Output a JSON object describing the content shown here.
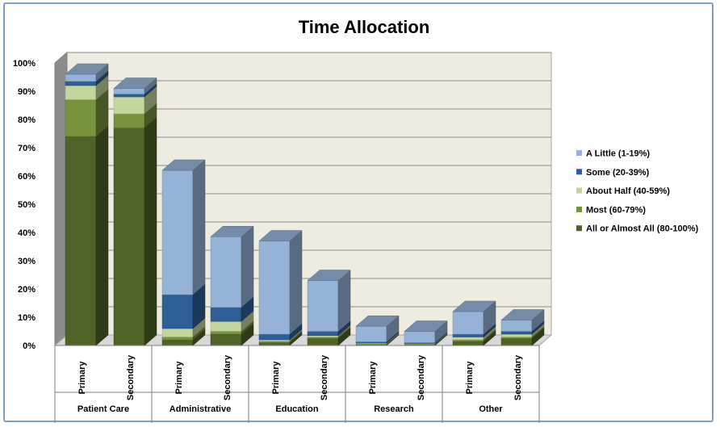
{
  "chart_data": {
    "type": "bar",
    "stacked": true,
    "three_d": true,
    "title": "Time Allocation",
    "xlabel": "",
    "ylabel": "",
    "ylim": [
      0,
      100
    ],
    "y_ticks": [
      "0%",
      "10%",
      "20%",
      "30%",
      "40%",
      "50%",
      "60%",
      "70%",
      "80%",
      "90%",
      "100%"
    ],
    "grid": true,
    "legend_position": "right",
    "groups": [
      {
        "name": "Patient Care",
        "categories": [
          "Primary",
          "Secondary"
        ]
      },
      {
        "name": "Administrative",
        "categories": [
          "Primary",
          "Secondary"
        ]
      },
      {
        "name": "Education",
        "categories": [
          "Primary",
          "Secondary"
        ]
      },
      {
        "name": "Research",
        "categories": [
          "Primary",
          "Secondary"
        ]
      },
      {
        "name": "Other",
        "categories": [
          "Primary",
          "Secondary"
        ]
      }
    ],
    "series": [
      {
        "name": "All or Almost All (80-100%)",
        "color": "#4f6228",
        "values": [
          74,
          77,
          2,
          4,
          1,
          2.5,
          0.3,
          0.3,
          1.5,
          2.5
        ]
      },
      {
        "name": "Most (60-79%)",
        "color": "#77933c",
        "values": [
          13,
          5,
          1,
          1,
          0.5,
          0.5,
          0.2,
          0.2,
          0.5,
          0.5
        ]
      },
      {
        "name": "About Half (40-59%)",
        "color": "#c3d69b",
        "values": [
          5,
          6,
          3,
          3.5,
          0.5,
          0.5,
          0.3,
          0.2,
          1,
          1
        ]
      },
      {
        "name": "Some (20-39%)",
        "color": "#2e5e96",
        "values": [
          1.5,
          1,
          12,
          5,
          2,
          1.5,
          0.5,
          0.3,
          1,
          1
        ]
      },
      {
        "name": "A Little (1-19%)",
        "color": "#95b3d7",
        "values": [
          2.5,
          2,
          44,
          25,
          33,
          18,
          5.5,
          4,
          8,
          4
        ]
      }
    ]
  }
}
